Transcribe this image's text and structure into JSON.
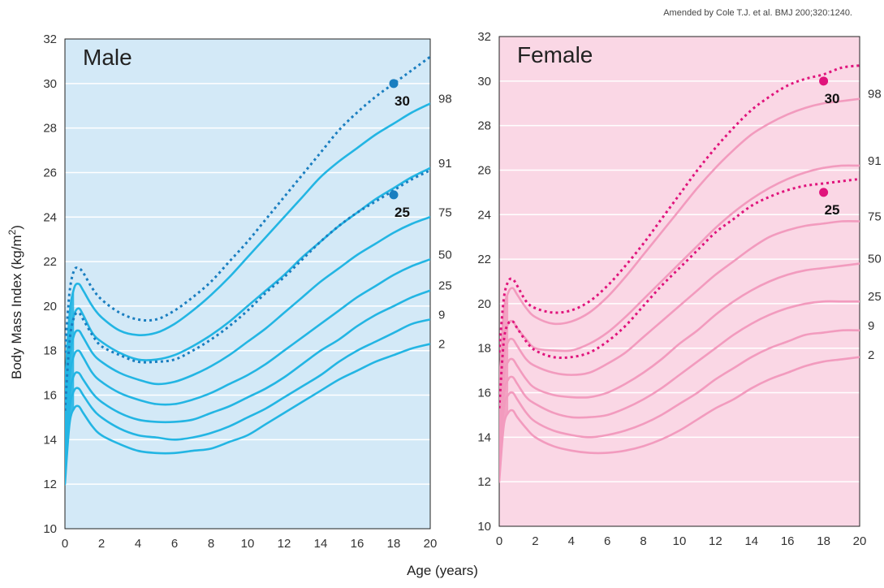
{
  "source_note": "Amended by Cole T.J. et al. BMJ 200;320:1240.",
  "y_axis_label": "Body Mass Index (kg/m",
  "y_axis_label_sup": "2",
  "y_axis_label_close": ")",
  "x_axis_label": "Age (years)",
  "chart_data": [
    {
      "type": "line",
      "title": "Male",
      "xlabel": "Age (years)",
      "ylabel": "Body Mass Index (kg/m2)",
      "xlim": [
        0,
        20
      ],
      "ylim": [
        10,
        32
      ],
      "x_ticks": [
        "0",
        "2",
        "4",
        "6",
        "8",
        "10",
        "12",
        "14",
        "16",
        "18",
        "20"
      ],
      "y_ticks": [
        "10",
        "12",
        "14",
        "16",
        "18",
        "20",
        "22",
        "24",
        "26",
        "28",
        "30",
        "32"
      ],
      "grid": "horizontal",
      "background": "#d3e9f7",
      "line_color": "#23b5e3",
      "cutoff_color": "#1a7ec0",
      "x": [
        0,
        0.25,
        0.5,
        0.75,
        1,
        1.5,
        2,
        3,
        4,
        5,
        6,
        7,
        8,
        9,
        10,
        11,
        12,
        13,
        14,
        15,
        16,
        17,
        18,
        19,
        20
      ],
      "series": [
        {
          "name": "98",
          "values": [
            16.3,
            19.6,
            20.8,
            21.0,
            20.7,
            20.0,
            19.5,
            18.9,
            18.7,
            18.8,
            19.2,
            19.8,
            20.5,
            21.3,
            22.2,
            23.1,
            24.0,
            24.9,
            25.8,
            26.5,
            27.1,
            27.7,
            28.2,
            28.7,
            29.1
          ]
        },
        {
          "name": "91",
          "values": [
            15.3,
            18.5,
            19.6,
            19.9,
            19.6,
            18.8,
            18.4,
            17.9,
            17.6,
            17.6,
            17.8,
            18.2,
            18.7,
            19.3,
            20.0,
            20.7,
            21.4,
            22.2,
            22.9,
            23.6,
            24.2,
            24.8,
            25.3,
            25.8,
            26.2
          ]
        },
        {
          "name": "75",
          "values": [
            14.6,
            17.6,
            18.7,
            18.9,
            18.6,
            17.9,
            17.5,
            17.0,
            16.7,
            16.5,
            16.6,
            16.9,
            17.3,
            17.8,
            18.4,
            19.0,
            19.7,
            20.4,
            21.1,
            21.7,
            22.3,
            22.8,
            23.3,
            23.7,
            24.0
          ]
        },
        {
          "name": "50",
          "values": [
            13.8,
            16.8,
            17.8,
            18.0,
            17.7,
            17.0,
            16.6,
            16.1,
            15.8,
            15.6,
            15.6,
            15.8,
            16.1,
            16.5,
            16.9,
            17.4,
            18.0,
            18.6,
            19.2,
            19.8,
            20.4,
            20.9,
            21.4,
            21.8,
            22.1
          ]
        },
        {
          "name": "25",
          "values": [
            13.2,
            16.0,
            16.9,
            17.0,
            16.7,
            16.1,
            15.7,
            15.2,
            14.9,
            14.8,
            14.8,
            14.9,
            15.2,
            15.5,
            15.9,
            16.3,
            16.8,
            17.4,
            18.0,
            18.5,
            19.1,
            19.6,
            20.0,
            20.4,
            20.7
          ]
        },
        {
          "name": "9",
          "values": [
            12.6,
            15.4,
            16.2,
            16.3,
            16.0,
            15.4,
            15.0,
            14.5,
            14.2,
            14.1,
            14.0,
            14.1,
            14.3,
            14.6,
            15.0,
            15.4,
            15.9,
            16.4,
            16.9,
            17.5,
            18.0,
            18.4,
            18.8,
            19.2,
            19.4
          ]
        },
        {
          "name": "2",
          "values": [
            12.0,
            14.7,
            15.4,
            15.5,
            15.2,
            14.6,
            14.2,
            13.8,
            13.5,
            13.4,
            13.4,
            13.5,
            13.6,
            13.9,
            14.2,
            14.7,
            15.2,
            15.7,
            16.2,
            16.7,
            17.1,
            17.5,
            17.8,
            18.1,
            18.3
          ]
        }
      ],
      "cutoffs": [
        {
          "name": "30",
          "point": [
            18,
            30
          ],
          "values": [
            17.9,
            20.6,
            21.6,
            21.7,
            21.5,
            20.8,
            20.3,
            19.7,
            19.4,
            19.4,
            19.8,
            20.4,
            21.1,
            22.0,
            22.9,
            23.9,
            24.9,
            25.9,
            26.9,
            27.9,
            28.7,
            29.4,
            30.0,
            30.6,
            31.2
          ]
        },
        {
          "name": "25",
          "point": [
            18,
            25
          ],
          "values": [
            15.3,
            18.4,
            19.5,
            19.7,
            19.4,
            18.7,
            18.2,
            17.8,
            17.5,
            17.5,
            17.6,
            18.0,
            18.5,
            19.1,
            19.8,
            20.6,
            21.3,
            22.1,
            22.9,
            23.6,
            24.2,
            24.7,
            25.2,
            25.7,
            26.1
          ]
        }
      ]
    },
    {
      "type": "line",
      "title": "Female",
      "xlabel": "Age (years)",
      "ylabel": "Body Mass Index (kg/m2)",
      "xlim": [
        0,
        20
      ],
      "ylim": [
        10,
        32
      ],
      "x_ticks": [
        "0",
        "2",
        "4",
        "6",
        "8",
        "10",
        "12",
        "14",
        "16",
        "18",
        "20"
      ],
      "y_ticks": [
        "10",
        "12",
        "14",
        "16",
        "18",
        "20",
        "22",
        "24",
        "26",
        "28",
        "30",
        "32"
      ],
      "grid": "horizontal",
      "background": "#fad7e5",
      "line_color": "#f29bbe",
      "cutoff_color": "#e0147c",
      "x": [
        0,
        0.25,
        0.5,
        0.75,
        1,
        1.5,
        2,
        3,
        4,
        5,
        6,
        7,
        8,
        9,
        10,
        11,
        12,
        13,
        14,
        15,
        16,
        17,
        18,
        19,
        20
      ],
      "series": [
        {
          "name": "98",
          "values": [
            16.3,
            19.6,
            20.5,
            20.7,
            20.4,
            19.8,
            19.4,
            19.1,
            19.2,
            19.6,
            20.3,
            21.2,
            22.2,
            23.2,
            24.2,
            25.2,
            26.1,
            26.9,
            27.6,
            28.1,
            28.5,
            28.8,
            29.0,
            29.1,
            29.2
          ]
        },
        {
          "name": "91",
          "values": [
            15.2,
            18.3,
            19.1,
            19.2,
            18.9,
            18.4,
            18.0,
            17.9,
            17.9,
            18.2,
            18.7,
            19.4,
            20.2,
            21.0,
            21.8,
            22.6,
            23.4,
            24.1,
            24.7,
            25.2,
            25.6,
            25.9,
            26.1,
            26.2,
            26.2
          ]
        },
        {
          "name": "75",
          "values": [
            14.5,
            17.5,
            18.3,
            18.4,
            18.1,
            17.5,
            17.2,
            16.9,
            16.8,
            16.9,
            17.3,
            17.8,
            18.5,
            19.2,
            19.9,
            20.6,
            21.3,
            21.9,
            22.5,
            23.0,
            23.3,
            23.5,
            23.6,
            23.7,
            23.7
          ]
        },
        {
          "name": "50",
          "values": [
            13.8,
            16.7,
            17.4,
            17.5,
            17.2,
            16.6,
            16.2,
            15.9,
            15.8,
            15.8,
            16.0,
            16.4,
            16.9,
            17.5,
            18.2,
            18.8,
            19.5,
            20.1,
            20.6,
            21.0,
            21.3,
            21.5,
            21.6,
            21.7,
            21.8
          ]
        },
        {
          "name": "25",
          "values": [
            13.2,
            15.9,
            16.6,
            16.7,
            16.4,
            15.8,
            15.5,
            15.1,
            14.9,
            14.9,
            15.0,
            15.3,
            15.7,
            16.2,
            16.8,
            17.4,
            18.0,
            18.6,
            19.1,
            19.5,
            19.8,
            20.0,
            20.1,
            20.1,
            20.1
          ]
        },
        {
          "name": "9",
          "values": [
            12.6,
            15.3,
            15.9,
            16.0,
            15.7,
            15.1,
            14.7,
            14.3,
            14.1,
            14.0,
            14.1,
            14.3,
            14.6,
            15.0,
            15.5,
            16.0,
            16.6,
            17.1,
            17.6,
            18.0,
            18.3,
            18.6,
            18.7,
            18.8,
            18.8
          ]
        },
        {
          "name": "2",
          "values": [
            12.0,
            14.5,
            15.1,
            15.2,
            14.9,
            14.4,
            14.0,
            13.6,
            13.4,
            13.3,
            13.3,
            13.4,
            13.6,
            13.9,
            14.3,
            14.8,
            15.3,
            15.7,
            16.2,
            16.6,
            16.9,
            17.2,
            17.4,
            17.5,
            17.6
          ]
        }
      ],
      "cutoffs": [
        {
          "name": "30",
          "point": [
            18,
            30
          ],
          "values": [
            17.8,
            20.2,
            21.0,
            21.1,
            20.8,
            20.1,
            19.8,
            19.6,
            19.7,
            20.1,
            20.8,
            21.7,
            22.7,
            23.8,
            24.9,
            26.0,
            27.0,
            27.9,
            28.7,
            29.3,
            29.8,
            30.1,
            30.3,
            30.6,
            30.7
          ]
        },
        {
          "name": "25",
          "point": [
            18,
            25
          ],
          "values": [
            15.3,
            18.3,
            19.1,
            19.2,
            18.9,
            18.3,
            17.9,
            17.6,
            17.6,
            17.8,
            18.3,
            19.0,
            19.9,
            20.8,
            21.6,
            22.4,
            23.2,
            23.8,
            24.4,
            24.8,
            25.1,
            25.3,
            25.4,
            25.5,
            25.6
          ]
        }
      ]
    }
  ]
}
